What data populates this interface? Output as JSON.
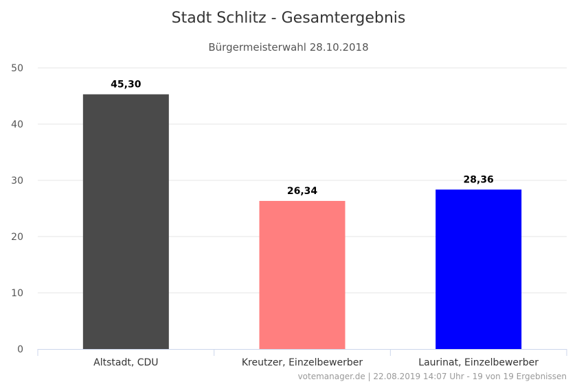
{
  "chart_data": {
    "type": "bar",
    "title": "Stadt Schlitz - Gesamtergebnis",
    "subtitle": "Bürgermeisterwahl 28.10.2018",
    "categories": [
      "Altstadt, CDU",
      "Kreutzer, Einzelbewerber",
      "Laurinat, Einzelbewerber"
    ],
    "values": [
      45.3,
      26.34,
      28.36
    ],
    "value_labels": [
      "45,30",
      "26,34",
      "28,36"
    ],
    "colors": [
      "#4a4a4a",
      "#ff7f7f",
      "#0000ff"
    ],
    "ylim": [
      0,
      50
    ],
    "yticks": [
      0,
      10,
      20,
      30,
      40,
      50
    ],
    "grid": true,
    "xlabel": "",
    "ylabel": ""
  },
  "credits": "votemanager.de | 22.08.2019 14:07 Uhr - 19 von 19 Ergebnissen"
}
